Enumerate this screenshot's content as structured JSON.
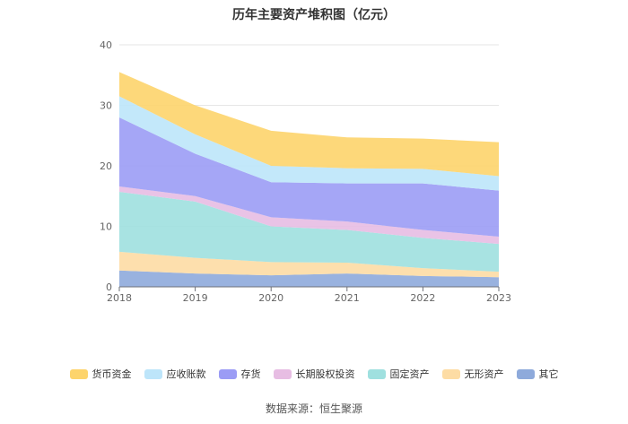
{
  "chart_data": {
    "type": "area",
    "stacked": true,
    "title": "历年主要资产堆积图（亿元）",
    "x": [
      "2018",
      "2019",
      "2020",
      "2021",
      "2022",
      "2023"
    ],
    "ylim": [
      0,
      40
    ],
    "yticks": [
      0,
      10,
      20,
      30,
      40
    ],
    "grid": true,
    "legend_position": "bottom",
    "series": [
      {
        "name": "其它",
        "color": "#8eaadb",
        "values": [
          2.7,
          2.2,
          1.9,
          2.2,
          1.8,
          1.6
        ]
      },
      {
        "name": "无形资产",
        "color": "#fddca4",
        "values": [
          3.1,
          2.6,
          2.2,
          1.8,
          1.3,
          0.9
        ]
      },
      {
        "name": "固定资产",
        "color": "#9fe0df",
        "values": [
          9.9,
          9.3,
          5.9,
          5.4,
          5.0,
          4.6
        ]
      },
      {
        "name": "长期股权投资",
        "color": "#e7bde3",
        "values": [
          0.9,
          0.9,
          1.5,
          1.4,
          1.3,
          1.2
        ]
      },
      {
        "name": "存货",
        "color": "#9b9cf5",
        "values": [
          11.4,
          7.0,
          5.8,
          6.3,
          7.7,
          7.6
        ]
      },
      {
        "name": "应收账款",
        "color": "#bde5fa",
        "values": [
          3.5,
          3.2,
          2.7,
          2.5,
          2.4,
          2.4
        ]
      },
      {
        "name": "货币资金",
        "color": "#fdd46c",
        "values": [
          4.0,
          4.8,
          5.8,
          5.1,
          5.0,
          5.6
        ]
      }
    ],
    "legend_order": [
      "货币资金",
      "应收账款",
      "存货",
      "长期股权投资",
      "固定资产",
      "无形资产",
      "其它"
    ]
  },
  "source": "数据来源：恒生聚源"
}
